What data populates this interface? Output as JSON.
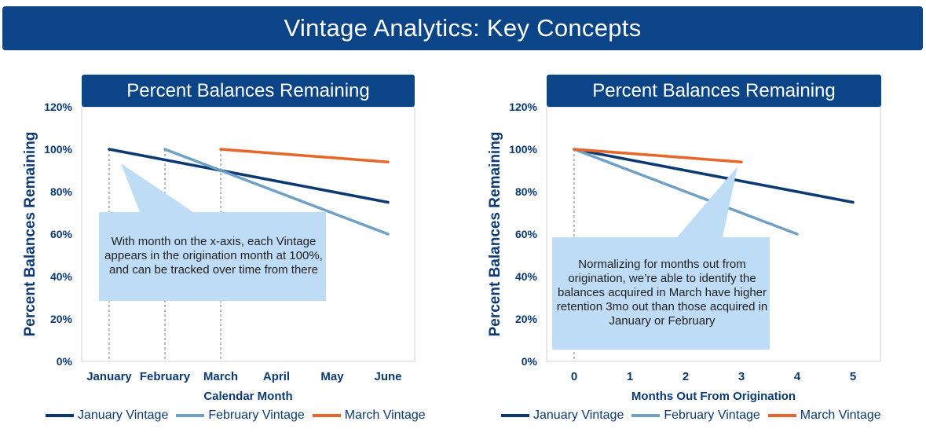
{
  "page_title": "Vintage Analytics: Key Concepts",
  "colors": {
    "january": "#0b3a73",
    "february": "#6fa0c8",
    "march": "#e8662a",
    "banner": "#0b4588",
    "callout": "#bfdcf7"
  },
  "charts": [
    {
      "title": "Percent Balances Remaining",
      "callout": "With month on the x-axis, each Vintage appears in the origination month at 100%, and can be tracked over time from there"
    },
    {
      "title": "Percent Balances Remaining",
      "callout": "Normalizing for months out from origination, we’re able to identify the balances acquired in March have higher retention 3mo out than those acquired in January or February"
    }
  ],
  "chart_data": [
    {
      "type": "line",
      "title": "Percent Balances Remaining",
      "xlabel": "Calendar Month",
      "ylabel": "Percent Balances Remaining",
      "categories": [
        "January",
        "February",
        "March",
        "April",
        "May",
        "June"
      ],
      "ylim": [
        0,
        120
      ],
      "yticks": [
        "0%",
        "20%",
        "40%",
        "60%",
        "80%",
        "100%",
        "120%"
      ],
      "series": [
        {
          "name": "January Vintage",
          "values": [
            100,
            95,
            90,
            85,
            80,
            75
          ]
        },
        {
          "name": "February Vintage",
          "values": [
            null,
            100,
            90,
            80,
            70,
            60
          ]
        },
        {
          "name": "March Vintage",
          "values": [
            null,
            null,
            100,
            98,
            96,
            94
          ]
        }
      ],
      "legend": "bottom"
    },
    {
      "type": "line",
      "title": "Percent Balances Remaining",
      "xlabel": "Months Out From Origination",
      "ylabel": "Percent Balances Remaining",
      "categories": [
        "0",
        "1",
        "2",
        "3",
        "4",
        "5"
      ],
      "ylim": [
        0,
        120
      ],
      "yticks": [
        "0%",
        "20%",
        "40%",
        "60%",
        "80%",
        "100%",
        "120%"
      ],
      "series": [
        {
          "name": "January Vintage",
          "values": [
            100,
            95,
            90,
            85,
            80,
            75
          ]
        },
        {
          "name": "February Vintage",
          "values": [
            100,
            90,
            80,
            70,
            60,
            null
          ]
        },
        {
          "name": "March Vintage",
          "values": [
            100,
            98,
            96,
            94,
            null,
            null
          ]
        }
      ],
      "legend": "bottom"
    }
  ]
}
